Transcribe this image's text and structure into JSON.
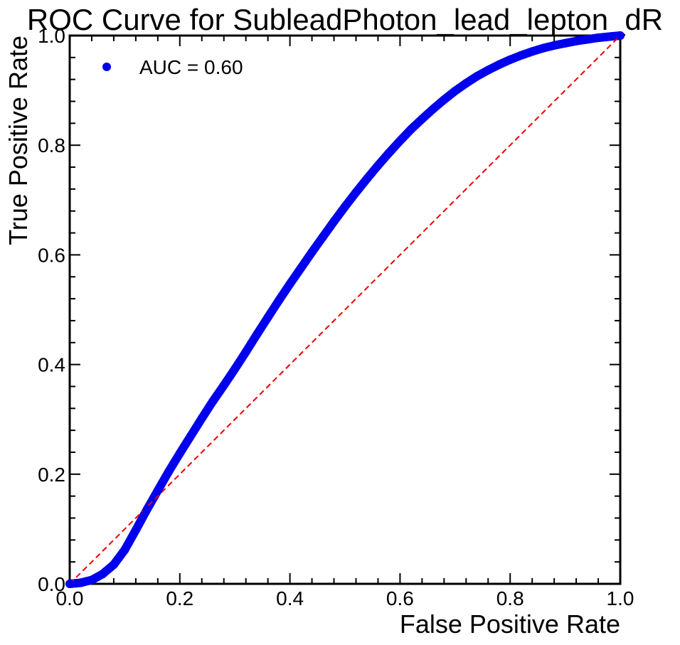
{
  "chart_data": {
    "type": "scatter",
    "title": "ROC Curve for SubleadPhoton_lead_lepton_dR",
    "xlabel": "False Positive Rate",
    "ylabel": "True Positive Rate",
    "xlim": [
      0.0,
      1.0
    ],
    "ylim": [
      0.0,
      1.0
    ],
    "x_ticks": [
      "0.0",
      "0.2",
      "0.4",
      "0.6",
      "0.8",
      "1.0"
    ],
    "y_ticks": [
      "0.0",
      "0.2",
      "0.4",
      "0.6",
      "0.8",
      "1.0"
    ],
    "grid": false,
    "legend_position": "top-left",
    "series": [
      {
        "name": "AUC = 0.60",
        "color": "#0000ee",
        "marker": "circle",
        "points": [
          [
            0.0,
            0.0
          ],
          [
            0.02,
            0.002
          ],
          [
            0.04,
            0.007
          ],
          [
            0.06,
            0.018
          ],
          [
            0.08,
            0.035
          ],
          [
            0.1,
            0.062
          ],
          [
            0.12,
            0.098
          ],
          [
            0.14,
            0.135
          ],
          [
            0.16,
            0.17
          ],
          [
            0.18,
            0.205
          ],
          [
            0.2,
            0.238
          ],
          [
            0.22,
            0.27
          ],
          [
            0.24,
            0.302
          ],
          [
            0.26,
            0.333
          ],
          [
            0.28,
            0.362
          ],
          [
            0.3,
            0.392
          ],
          [
            0.32,
            0.423
          ],
          [
            0.34,
            0.455
          ],
          [
            0.36,
            0.486
          ],
          [
            0.38,
            0.517
          ],
          [
            0.4,
            0.547
          ],
          [
            0.42,
            0.576
          ],
          [
            0.44,
            0.605
          ],
          [
            0.46,
            0.633
          ],
          [
            0.48,
            0.661
          ],
          [
            0.5,
            0.688
          ],
          [
            0.52,
            0.714
          ],
          [
            0.54,
            0.739
          ],
          [
            0.56,
            0.763
          ],
          [
            0.58,
            0.786
          ],
          [
            0.6,
            0.808
          ],
          [
            0.62,
            0.829
          ],
          [
            0.64,
            0.848
          ],
          [
            0.66,
            0.866
          ],
          [
            0.68,
            0.883
          ],
          [
            0.7,
            0.899
          ],
          [
            0.72,
            0.913
          ],
          [
            0.74,
            0.926
          ],
          [
            0.76,
            0.937
          ],
          [
            0.78,
            0.947
          ],
          [
            0.8,
            0.956
          ],
          [
            0.82,
            0.964
          ],
          [
            0.84,
            0.971
          ],
          [
            0.86,
            0.977
          ],
          [
            0.88,
            0.982
          ],
          [
            0.9,
            0.986
          ],
          [
            0.92,
            0.99
          ],
          [
            0.94,
            0.993
          ],
          [
            0.96,
            0.996
          ],
          [
            0.98,
            0.998
          ],
          [
            1.0,
            1.0
          ]
        ]
      },
      {
        "name": "",
        "style": "dashed",
        "color": "#ee0000",
        "points": [
          [
            0.0,
            0.0
          ],
          [
            1.0,
            1.0
          ]
        ]
      }
    ]
  }
}
